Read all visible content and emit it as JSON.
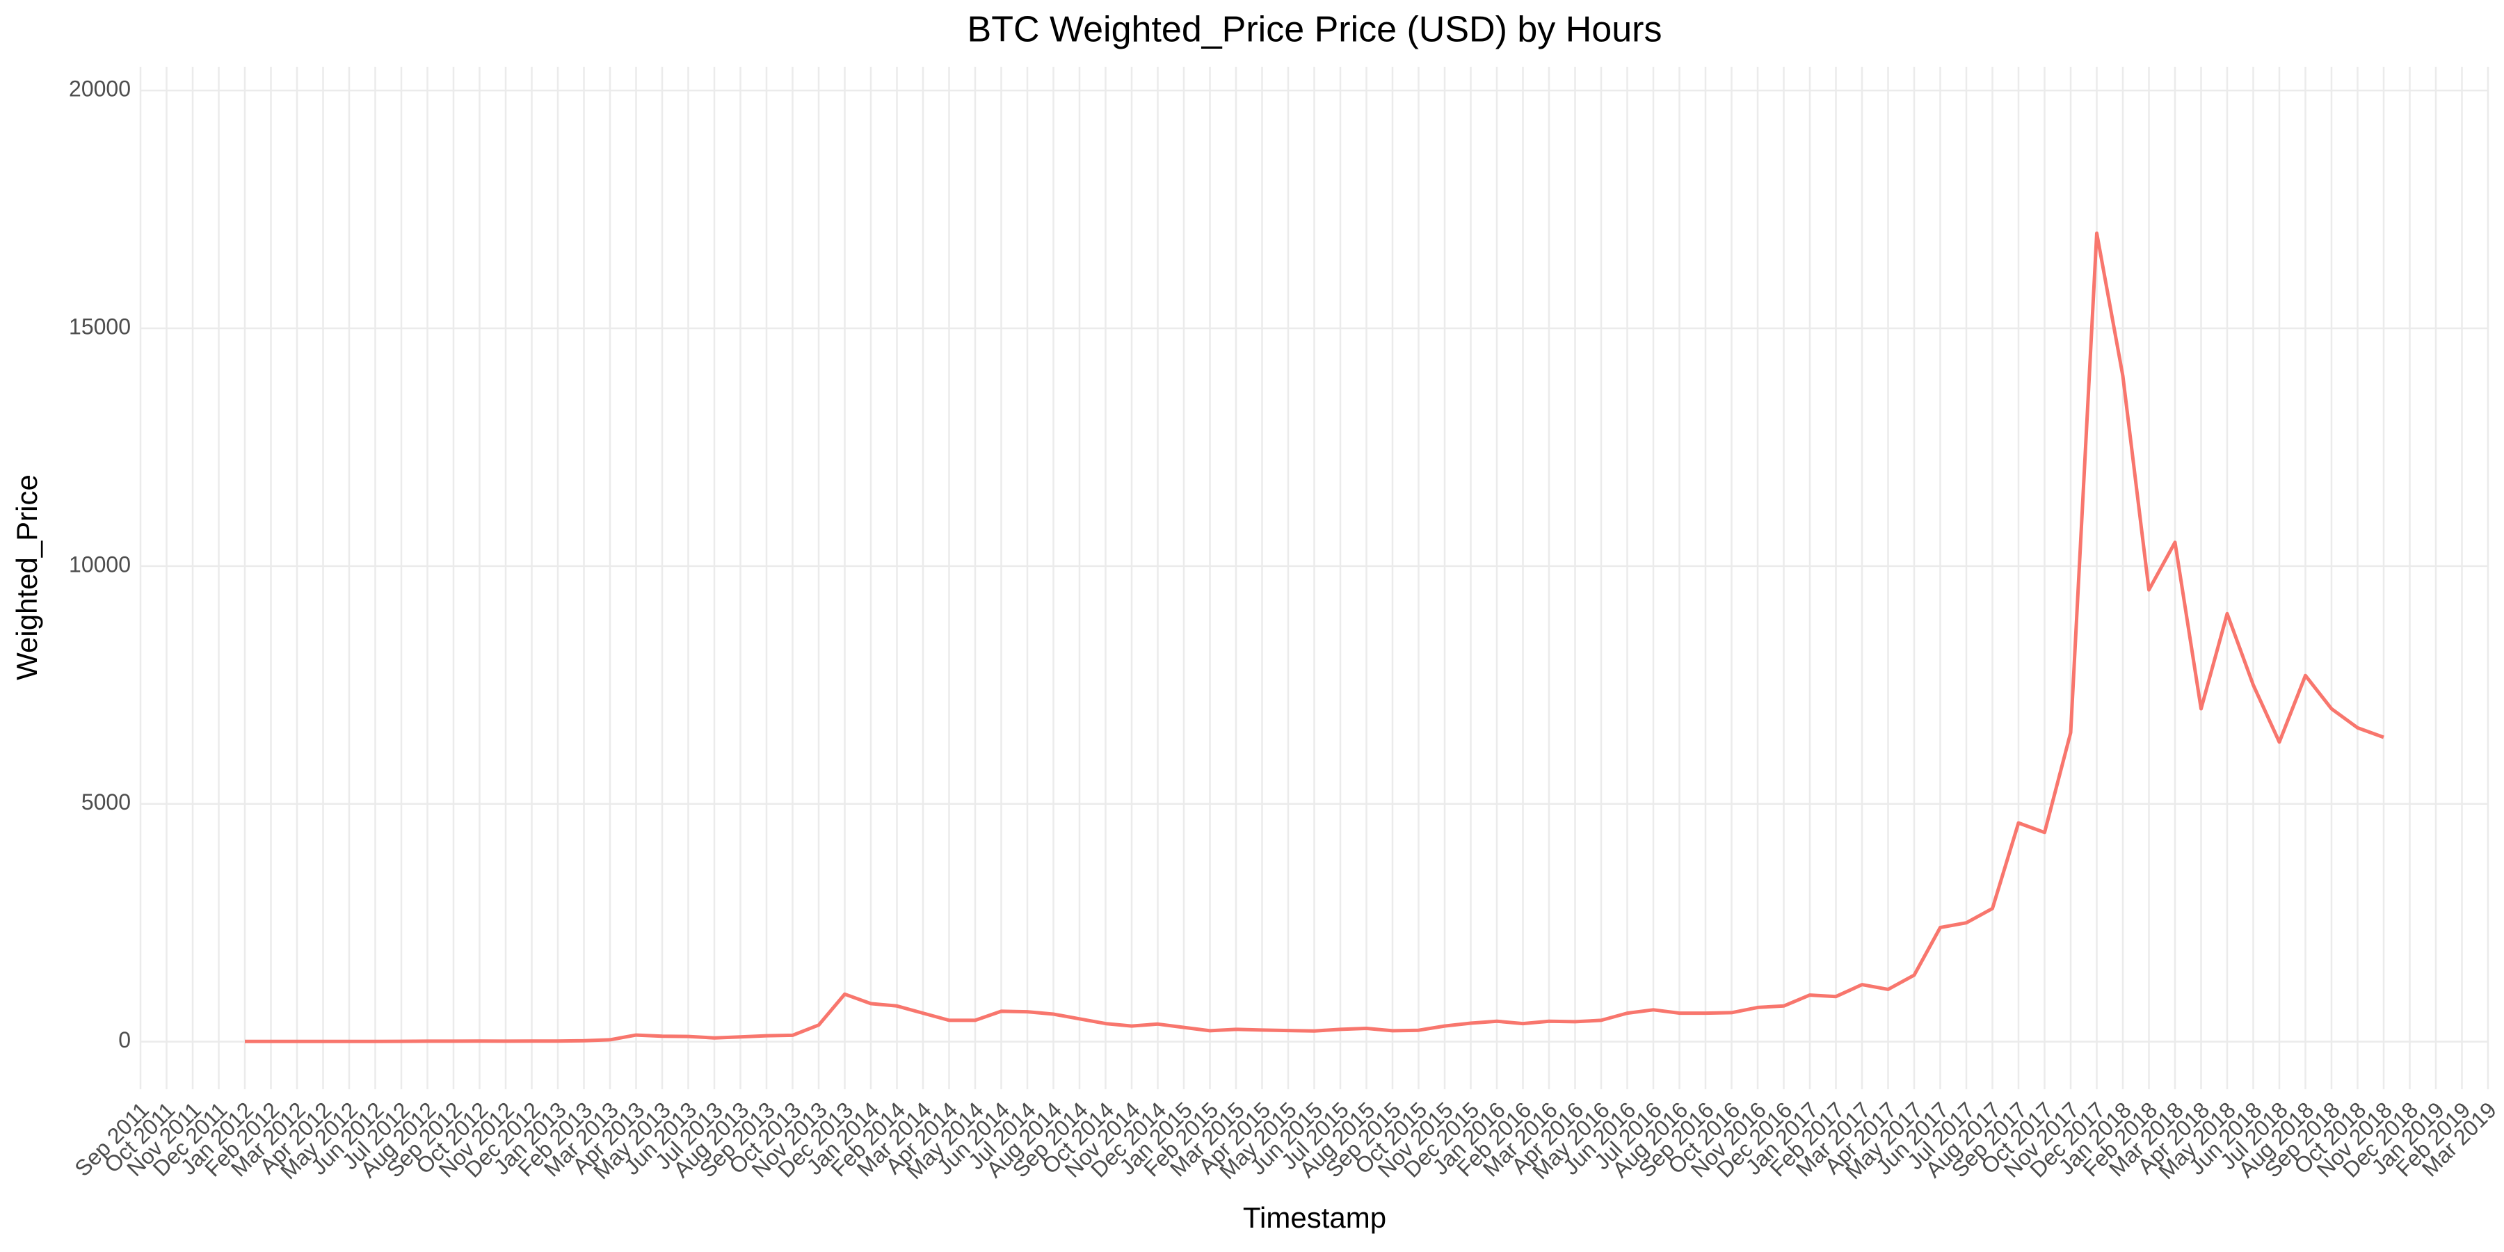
{
  "chart_data": {
    "type": "line",
    "title": "BTC Weighted_Price Price (USD) by Hours",
    "x_label": "Timestamp",
    "y_label": "Weighted_Price",
    "x": [
      "Jan 2012",
      "Feb 2012",
      "Mar 2012",
      "Apr 2012",
      "May 2012",
      "Jun 2012",
      "Jul 2012",
      "Aug 2012",
      "Sep 2012",
      "Oct 2012",
      "Nov 2012",
      "Dec 2012",
      "Jan 2013",
      "Feb 2013",
      "Mar 2013",
      "Apr 2013",
      "May 2013",
      "Jun 2013",
      "Jul 2013",
      "Aug 2013",
      "Sep 2013",
      "Oct 2013",
      "Nov 2013",
      "Dec 2013",
      "Jan 2014",
      "Feb 2014",
      "Mar 2014",
      "Apr 2014",
      "May 2014",
      "Jun 2014",
      "Jul 2014",
      "Aug 2014",
      "Sep 2014",
      "Oct 2014",
      "Nov 2014",
      "Dec 2014",
      "Jan 2015",
      "Feb 2015",
      "Mar 2015",
      "Apr 2015",
      "May 2015",
      "Jun 2015",
      "Jul 2015",
      "Aug 2015",
      "Sep 2015",
      "Oct 2015",
      "Nov 2015",
      "Dec 2015",
      "Jan 2016",
      "Feb 2016",
      "Mar 2016",
      "Apr 2016",
      "May 2016",
      "Jun 2016",
      "Jul 2016",
      "Aug 2016",
      "Sep 2016",
      "Oct 2016",
      "Nov 2016",
      "Dec 2016",
      "Jan 2017",
      "Feb 2017",
      "Mar 2017",
      "Apr 2017",
      "May 2017",
      "Jun 2017",
      "Jul 2017",
      "Aug 2017",
      "Sep 2017",
      "Oct 2017",
      "Nov 2017",
      "Dec 2017",
      "Jan 2018",
      "Feb 2018",
      "Mar 2018",
      "Apr 2018",
      "May 2018",
      "Jun 2018",
      "Jul 2018",
      "Aug 2018",
      "Sep 2018",
      "Oct 2018",
      "Nov 2018"
    ],
    "series": [
      {
        "name": "Weighted_Price",
        "color": "#F8766D",
        "values": [
          6,
          6,
          5,
          5,
          5,
          6,
          7,
          10,
          11,
          12,
          11,
          13,
          14,
          20,
          40,
          140,
          115,
          110,
          80,
          100,
          125,
          135,
          350,
          1000,
          800,
          750,
          600,
          450,
          450,
          640,
          630,
          580,
          480,
          380,
          330,
          370,
          300,
          230,
          260,
          245,
          235,
          225,
          260,
          280,
          230,
          240,
          330,
          390,
          430,
          380,
          430,
          420,
          450,
          600,
          670,
          600,
          600,
          610,
          720,
          750,
          980,
          950,
          1200,
          1100,
          1400,
          2400,
          2500,
          2800,
          4600,
          4400,
          6500,
          17000,
          14000,
          9500,
          10500,
          7000,
          9000,
          7500,
          6300,
          7700,
          7000,
          6600,
          6400
        ]
      }
    ],
    "xlim": [
      "Sep 2011",
      "Mar 2019"
    ],
    "xticks": [
      "Sep 2011",
      "Oct 2011",
      "Nov 2011",
      "Dec 2011",
      "Jan 2012",
      "Feb 2012",
      "Mar 2012",
      "Apr 2012",
      "May 2012",
      "Jun 2012",
      "Jul 2012",
      "Aug 2012",
      "Sep 2012",
      "Oct 2012",
      "Nov 2012",
      "Dec 2012",
      "Jan 2013",
      "Feb 2013",
      "Mar 2013",
      "Apr 2013",
      "May 2013",
      "Jun 2013",
      "Jul 2013",
      "Aug 2013",
      "Sep 2013",
      "Oct 2013",
      "Nov 2013",
      "Dec 2013",
      "Jan 2014",
      "Feb 2014",
      "Mar 2014",
      "Apr 2014",
      "May 2014",
      "Jun 2014",
      "Jul 2014",
      "Aug 2014",
      "Sep 2014",
      "Oct 2014",
      "Nov 2014",
      "Dec 2014",
      "Jan 2015",
      "Feb 2015",
      "Mar 2015",
      "Apr 2015",
      "May 2015",
      "Jun 2015",
      "Jul 2015",
      "Aug 2015",
      "Sep 2015",
      "Oct 2015",
      "Nov 2015",
      "Dec 2015",
      "Jan 2016",
      "Feb 2016",
      "Mar 2016",
      "Apr 2016",
      "May 2016",
      "Jun 2016",
      "Jul 2016",
      "Aug 2016",
      "Sep 2016",
      "Oct 2016",
      "Nov 2016",
      "Dec 2016",
      "Jan 2017",
      "Feb 2017",
      "Mar 2017",
      "Apr 2017",
      "May 2017",
      "Jun 2017",
      "Jul 2017",
      "Aug 2017",
      "Sep 2017",
      "Oct 2017",
      "Nov 2017",
      "Dec 2017",
      "Jan 2018",
      "Feb 2018",
      "Mar 2018",
      "Apr 2018",
      "May 2018",
      "Jun 2018",
      "Jul 2018",
      "Aug 2018",
      "Sep 2018",
      "Oct 2018",
      "Nov 2018",
      "Dec 2018",
      "Jan 2019",
      "Feb 2019",
      "Mar 2019"
    ],
    "ylim": [
      -1000,
      20500
    ],
    "yticks": [
      0,
      5000,
      10000,
      15000,
      20000
    ],
    "grid": true
  }
}
